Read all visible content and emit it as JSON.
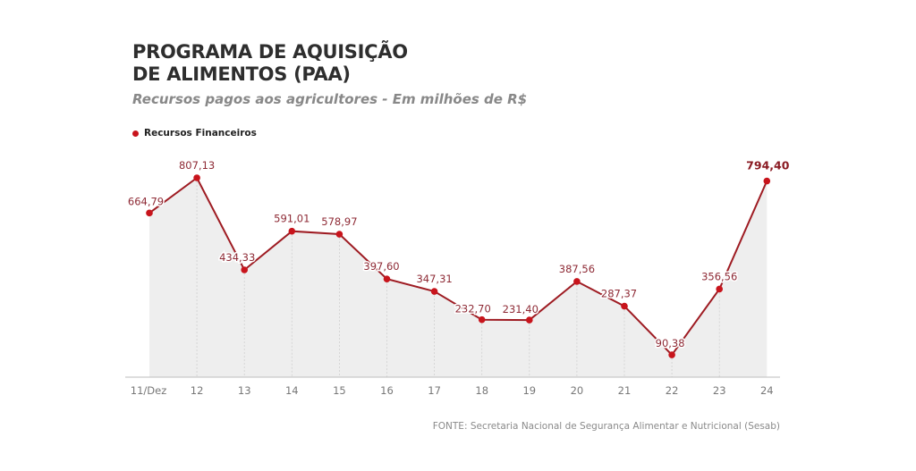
{
  "title_line1": "PROGRAMA DE AQUISIÇÃO",
  "title_line2": "DE ALIMENTOS (PAA)",
  "subtitle": "Recursos pagos aos agricultores - Em milhões de R$",
  "source": "FONTE: Secretaria Nacional de Segurança Alimentar e Nutricional (Sesab)",
  "colors": {
    "line": "#9e1b22",
    "marker": "#c8141c",
    "area": "#eeeeee",
    "label": "#8e2a35"
  },
  "chart_data": {
    "type": "area",
    "categories": [
      "11/Dez",
      "12",
      "13",
      "14",
      "15",
      "16",
      "17",
      "18",
      "19",
      "20",
      "21",
      "22",
      "23",
      "24"
    ],
    "series": [
      {
        "name": "Recursos Financeiros",
        "values": [
          664.79,
          807.13,
          434.33,
          591.01,
          578.97,
          397.6,
          347.31,
          232.7,
          231.4,
          387.56,
          287.37,
          90.38,
          356.56,
          794.4
        ],
        "labels": [
          "664,79",
          "807,13",
          "434,33",
          "591,01",
          "578,97",
          "397,60",
          "347,31",
          "232,70",
          "231,40",
          "387,56",
          "287,37",
          "90,38",
          "356,56",
          "794,40"
        ]
      }
    ],
    "ylim": [
      0,
      820
    ],
    "grid": false,
    "legend": "top-left",
    "xlabel": "",
    "ylabel": ""
  }
}
